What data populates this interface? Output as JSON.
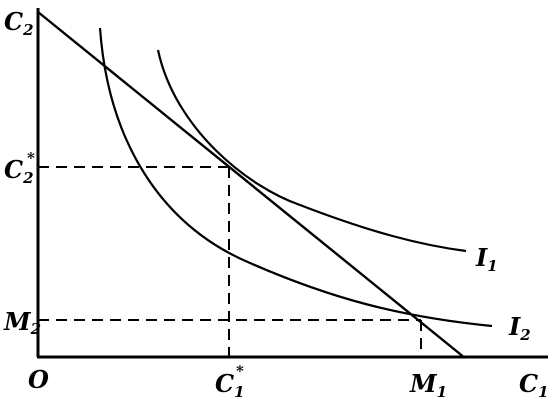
{
  "labels": {
    "origin": "O",
    "c2_letter": "C",
    "c2_sub": "2",
    "c2star_letter": "C",
    "c2star_sub": "2",
    "c2star_mark": "*",
    "m2_letter": "M",
    "m2_sub": "2",
    "c1_letter": "C",
    "c1_sub": "1",
    "c1star_letter": "C",
    "c1star_sub": "1",
    "c1star_mark": "*",
    "m1_letter": "M",
    "m1_sub": "1",
    "i1_letter": "I",
    "i1_sub": "1",
    "i2_letter": "I",
    "i2_sub": "2"
  }
}
